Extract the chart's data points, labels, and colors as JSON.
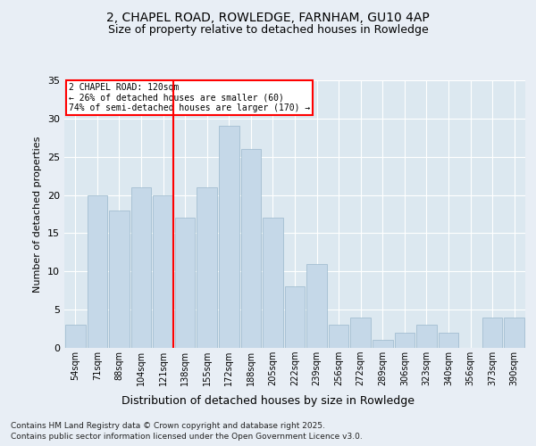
{
  "categories": [
    "54sqm",
    "71sqm",
    "88sqm",
    "104sqm",
    "121sqm",
    "138sqm",
    "155sqm",
    "172sqm",
    "188sqm",
    "205sqm",
    "222sqm",
    "239sqm",
    "256sqm",
    "272sqm",
    "289sqm",
    "306sqm",
    "323sqm",
    "340sqm",
    "356sqm",
    "373sqm",
    "390sqm"
  ],
  "values": [
    3,
    20,
    18,
    21,
    20,
    17,
    21,
    29,
    26,
    17,
    8,
    11,
    3,
    4,
    1,
    2,
    3,
    2,
    0,
    4,
    4
  ],
  "bar_color": "#c5d8e8",
  "bar_edge_color": "#9ab8cc",
  "red_line_index": 4,
  "annotation_title": "2 CHAPEL ROAD: 120sqm",
  "annotation_line1": "← 26% of detached houses are smaller (60)",
  "annotation_line2": "74% of semi-detached houses are larger (170) →",
  "title1": "2, CHAPEL ROAD, ROWLEDGE, FARNHAM, GU10 4AP",
  "title2": "Size of property relative to detached houses in Rowledge",
  "xlabel": "Distribution of detached houses by size in Rowledge",
  "ylabel": "Number of detached properties",
  "ylim": [
    0,
    35
  ],
  "yticks": [
    0,
    5,
    10,
    15,
    20,
    25,
    30,
    35
  ],
  "footer1": "Contains HM Land Registry data © Crown copyright and database right 2025.",
  "footer2": "Contains public sector information licensed under the Open Government Licence v3.0.",
  "bg_color": "#e8eef5",
  "plot_bg_color": "#dce8f0"
}
